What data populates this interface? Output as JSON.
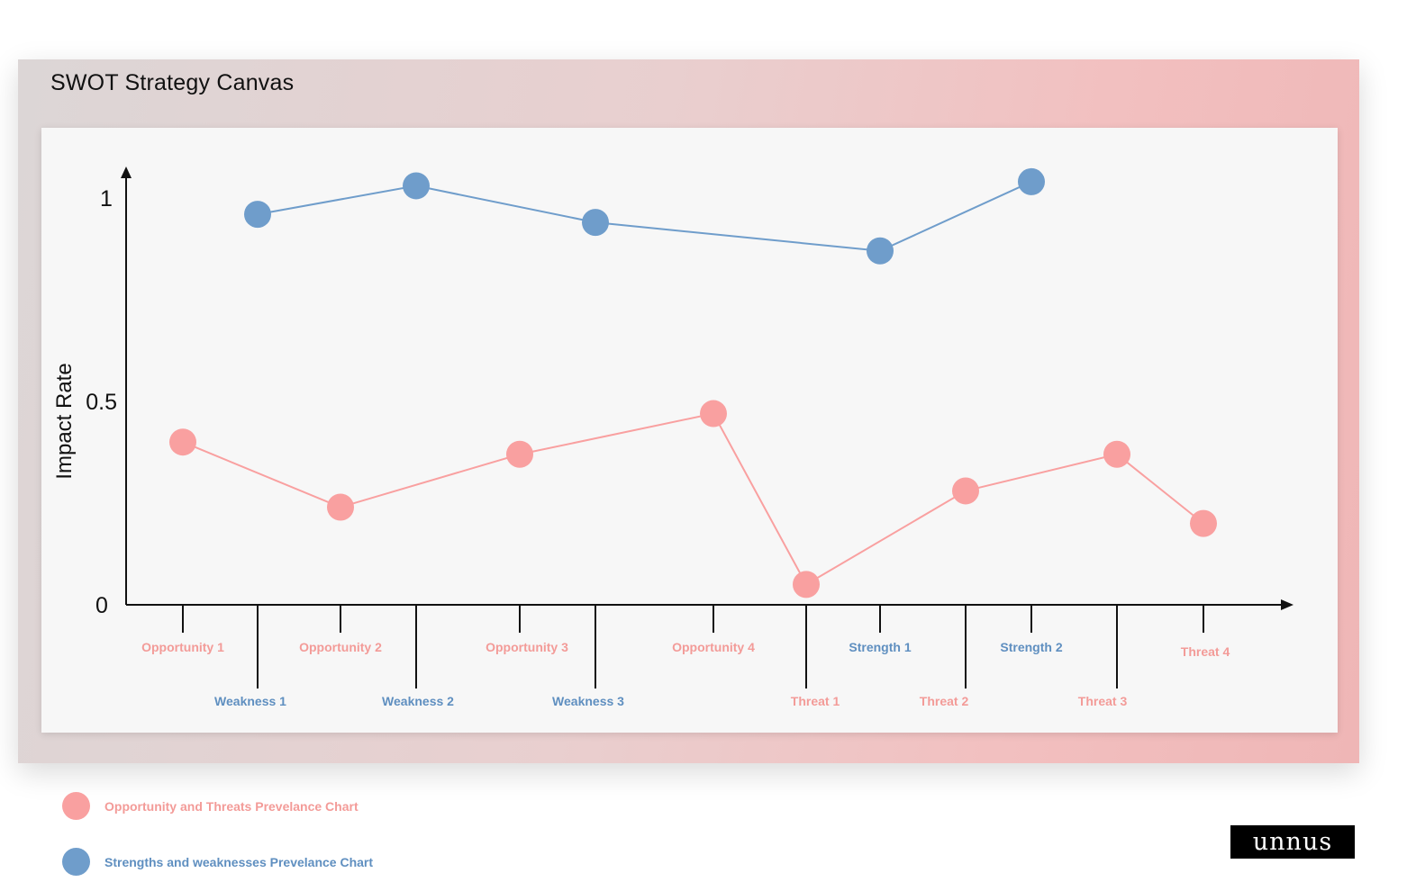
{
  "title": "SWOT Strategy Canvas",
  "colors": {
    "ot": "#f9a0a0",
    "ot_text": "#f39b98",
    "sw": "#6f9dcb",
    "sw_text": "#5f8fc0"
  },
  "chart_data": {
    "type": "line",
    "ylabel": "Impact  Rate",
    "ylim": [
      0,
      1.1
    ],
    "yticks": [
      {
        "value": 0,
        "label": "0"
      },
      {
        "value": 0.5,
        "label": "0.5"
      },
      {
        "value": 1,
        "label": "1"
      }
    ],
    "x_order": [
      "Opportunity 1",
      "Weakness 1",
      "Opportunity 2",
      "Weakness 2",
      "Opportunity 3",
      "Weakness 3",
      "Opportunity 4",
      "Threat 1",
      "Strength 1",
      "Threat 2",
      "Strength 2",
      "Threat 3",
      "Threat 4"
    ],
    "series": [
      {
        "name": "Strengths and weaknesses Prevelance Chart",
        "color": "#6f9dcb",
        "points": [
          {
            "label": "Weakness 1",
            "value": 0.96
          },
          {
            "label": "Weakness 2",
            "value": 1.03
          },
          {
            "label": "Weakness 3",
            "value": 0.94
          },
          {
            "label": "Strength 1",
            "value": 0.87
          },
          {
            "label": "Strength 2",
            "value": 1.04
          }
        ]
      },
      {
        "name": "Opportunity and Threats Prevelance Chart",
        "color": "#f9a0a0",
        "points": [
          {
            "label": "Opportunity 1",
            "value": 0.4
          },
          {
            "label": "Opportunity 2",
            "value": 0.24
          },
          {
            "label": "Opportunity 3",
            "value": 0.37
          },
          {
            "label": "Opportunity 4",
            "value": 0.47
          },
          {
            "label": "Threat 1",
            "value": 0.05
          },
          {
            "label": "Threat 2",
            "value": 0.28
          },
          {
            "label": "Threat 3",
            "value": 0.37
          },
          {
            "label": "Threat 4",
            "value": 0.2
          }
        ]
      }
    ]
  },
  "legend": {
    "ot_label": "Opportunity and Threats Prevelance Chart",
    "sw_label": "Strengths and weaknesses Prevelance Chart"
  },
  "logo": "unnus"
}
